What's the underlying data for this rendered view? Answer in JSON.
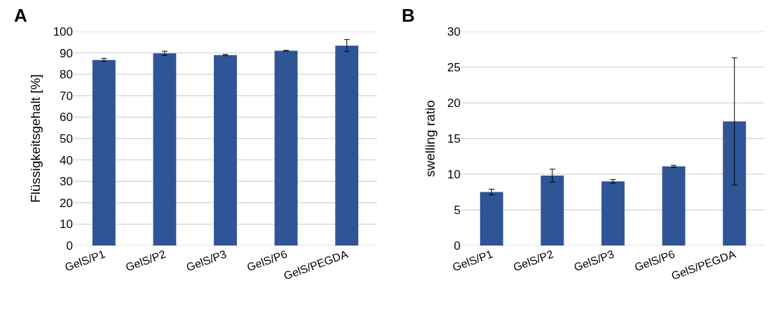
{
  "chart_data": [
    {
      "type": "bar",
      "annotations": [
        "A"
      ],
      "ylabel": "Flüssigkeitsgehalt [%]",
      "categories": [
        "GelS/P1",
        "GelS/P2",
        "GelS/P3",
        "GelS/P6",
        "GelS/PEGDA"
      ],
      "values": [
        86.7,
        89.8,
        89.0,
        91.0,
        93.4
      ],
      "errors": [
        0.7,
        1.0,
        0.3,
        0.2,
        2.8
      ],
      "color": "#2f5597",
      "ylim": [
        0,
        100
      ],
      "yticks": [
        0,
        10,
        20,
        30,
        40,
        50,
        60,
        70,
        80,
        90,
        100
      ],
      "grid": "y"
    },
    {
      "type": "bar",
      "annotations": [
        "B"
      ],
      "ylabel": "swelling ratio",
      "categories": [
        "GelS/P1",
        "GelS/P2",
        "GelS/P3",
        "GelS/P6",
        "GelS/PEGDA"
      ],
      "values": [
        7.5,
        9.8,
        9.0,
        11.1,
        17.4
      ],
      "errors": [
        0.4,
        0.9,
        0.25,
        0.15,
        8.9
      ],
      "color": "#2f5597",
      "ylim": [
        0,
        30
      ],
      "yticks": [
        0,
        5,
        10,
        15,
        20,
        25,
        30
      ],
      "grid": "y"
    }
  ]
}
